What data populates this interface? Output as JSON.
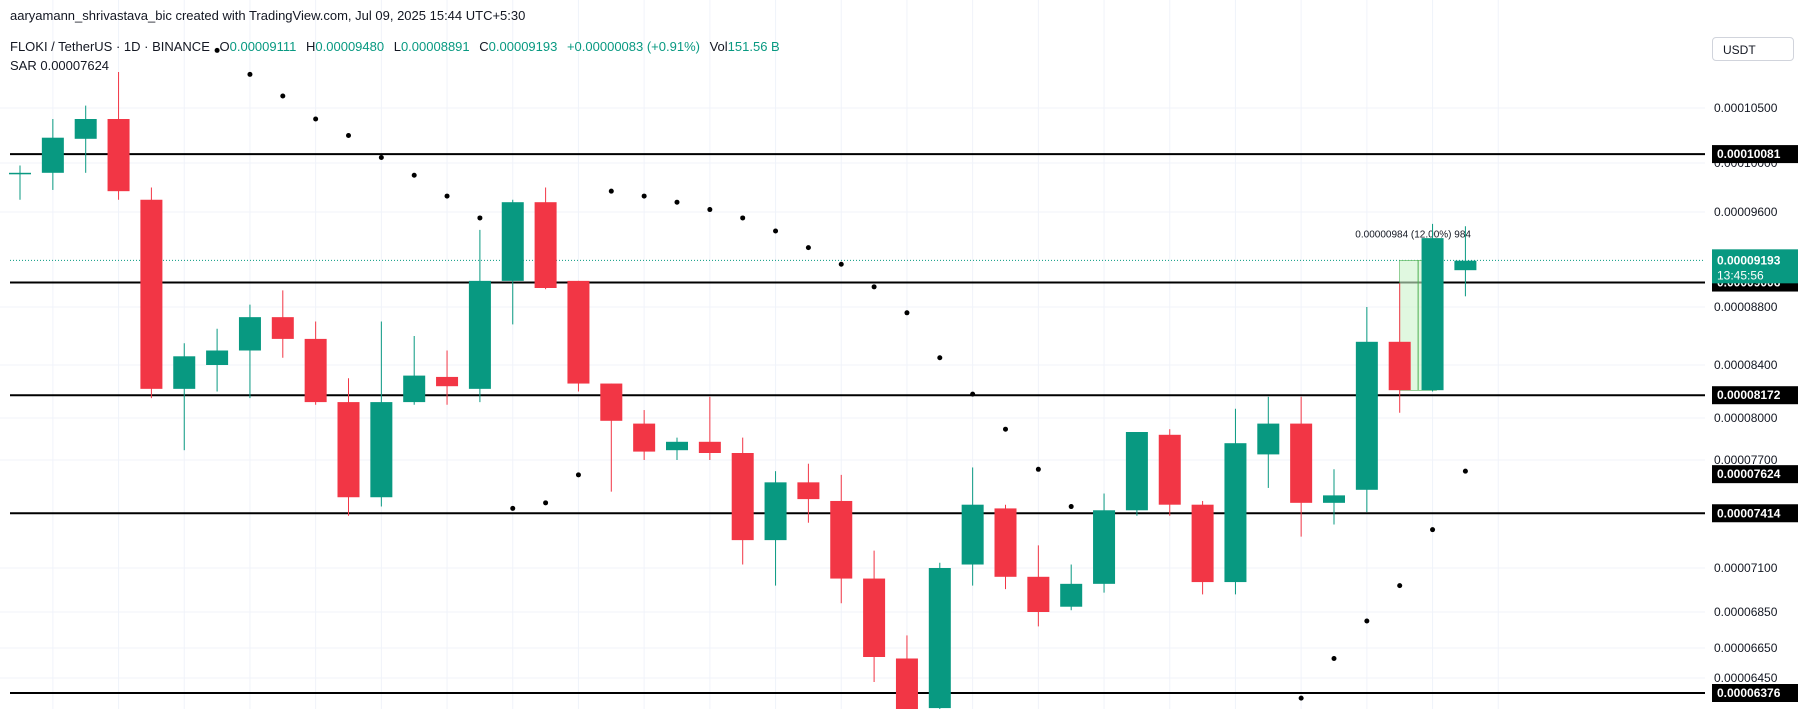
{
  "header": {
    "credit": "aaryamann_shrivastava_bic created with TradingView.com, Jul 09, 2025 15:44 UTC+5:30",
    "symbol": "FLOKI / TetherUS · 1D · BINANCE",
    "o_label": "O",
    "o_value": "0.00009111",
    "h_label": "H",
    "h_value": "0.00009480",
    "l_label": "L",
    "l_value": "0.00008891",
    "c_label": "C",
    "c_value": "0.00009193",
    "change": "+0.00000083 (+0.91%)",
    "vol_label": "Vol",
    "vol_value": "151.56 B",
    "sar_label": "SAR",
    "sar_value": "0.00007624"
  },
  "currency_button": "USDT",
  "colors": {
    "up": "#089981",
    "down": "#f23645",
    "sar_dot": "#000000",
    "grid": "#f0f3fa",
    "level_line": "#000000",
    "range_fill": "#ccf3cc",
    "range_stroke": "#4caf50"
  },
  "chart_data": {
    "type": "candlestick",
    "y_ticks": [
      "0.00010500",
      "0.00010000",
      "0.00009600",
      "0.00008800",
      "0.00008400",
      "0.00008000",
      "0.00007700",
      "0.00007100",
      "0.00006850",
      "0.00006650",
      "0.00006450"
    ],
    "levels": [
      {
        "label": "0.00010081",
        "value": 0.00010081
      },
      {
        "label": "0.00009006",
        "value": 9.006e-05
      },
      {
        "label": "0.00008172",
        "value": 8.172e-05
      },
      {
        "label": "0.00007414",
        "value": 7.414e-05
      },
      {
        "label": "0.00006376",
        "value": 6.376e-05
      }
    ],
    "sar_label": {
      "label": "0.00007624",
      "value": 7.624e-05
    },
    "last_price": {
      "label": "0.00009193",
      "countdown": "13:45:56",
      "value": 9.193e-05
    },
    "measure_label": "0.00000984 (12.00%) 984",
    "measure_range": {
      "from": 8.209e-05,
      "to": 9.193e-05,
      "start_index": 42,
      "end_index": 43
    },
    "candles": [
      [
        9.92e-05,
        9.98e-05,
        9.7e-05,
        9.92e-05
      ],
      [
        9.92e-05,
        0.000104,
        9.78e-05,
        0.0001023
      ],
      [
        0.0001022,
        0.0001052,
        9.92e-05,
        0.000104
      ],
      [
        0.000104,
        0.000108,
        9.7e-05,
        9.77e-05
      ],
      [
        9.7e-05,
        9.8e-05,
        8.15e-05,
        8.22e-05
      ],
      [
        8.22e-05,
        8.55e-05,
        7.77e-05,
        8.46e-05
      ],
      [
        8.4e-05,
        8.65e-05,
        8.2e-05,
        8.5e-05
      ],
      [
        8.5e-05,
        8.82e-05,
        8.15e-05,
        8.73e-05
      ],
      [
        8.73e-05,
        8.94e-05,
        8.45e-05,
        8.58e-05
      ],
      [
        8.58e-05,
        8.7e-05,
        8.1e-05,
        8.12e-05
      ],
      [
        8.12e-05,
        8.3e-05,
        7.4e-05,
        7.5e-05
      ],
      [
        7.5e-05,
        8.7e-05,
        7.45e-05,
        8.12e-05
      ],
      [
        8.12e-05,
        8.6e-05,
        8.1e-05,
        8.32e-05
      ],
      [
        8.31e-05,
        8.5e-05,
        8.1e-05,
        8.24e-05
      ],
      [
        8.22e-05,
        9.45e-05,
        8.12e-05,
        9.02e-05
      ],
      [
        9.02e-05,
        9.7e-05,
        8.68e-05,
        9.68e-05
      ],
      [
        9.68e-05,
        9.8e-05,
        8.95e-05,
        8.96e-05
      ],
      [
        9.02e-05,
        9.02e-05,
        8.2e-05,
        8.26e-05
      ],
      [
        8.26e-05,
        8.26e-05,
        7.53e-05,
        7.98e-05
      ],
      [
        7.96e-05,
        8.06e-05,
        7.7e-05,
        7.76e-05
      ],
      [
        7.77e-05,
        7.86e-05,
        7.7e-05,
        7.83e-05
      ],
      [
        7.83e-05,
        8.16e-05,
        7.7e-05,
        7.75e-05
      ],
      [
        7.75e-05,
        7.86e-05,
        7.12e-05,
        7.26e-05
      ],
      [
        7.26e-05,
        7.64e-05,
        7e-05,
        7.58e-05
      ],
      [
        7.58e-05,
        7.68e-05,
        7.36e-05,
        7.49e-05
      ],
      [
        7.48e-05,
        7.62e-05,
        6.9e-05,
        7.04e-05
      ],
      [
        7.04e-05,
        7.2e-05,
        6.43e-05,
        6.59e-05
      ],
      [
        6.58e-05,
        6.72e-05,
        6.1e-05,
        6.16e-05
      ],
      [
        6.21e-05,
        7.13e-05,
        6.18e-05,
        7.1e-05
      ],
      [
        7.12e-05,
        7.66e-05,
        7e-05,
        7.46e-05
      ],
      [
        7.44e-05,
        7.46e-05,
        6.98e-05,
        7.05e-05
      ],
      [
        7.05e-05,
        7.23e-05,
        6.77e-05,
        6.85e-05
      ],
      [
        6.88e-05,
        7.12e-05,
        6.86e-05,
        7.01e-05
      ],
      [
        7.01e-05,
        7.52e-05,
        6.96e-05,
        7.43e-05
      ],
      [
        7.43e-05,
        7.9e-05,
        7.4e-05,
        7.9e-05
      ],
      [
        7.88e-05,
        7.92e-05,
        7.4e-05,
        7.46e-05
      ],
      [
        7.46e-05,
        7.48e-05,
        6.95e-05,
        7.02e-05
      ],
      [
        7.02e-05,
        8.07e-05,
        6.95e-05,
        7.82e-05
      ],
      [
        7.74e-05,
        8.16e-05,
        7.55e-05,
        7.96e-05
      ],
      [
        7.96e-05,
        8.16e-05,
        7.28e-05,
        7.47e-05
      ],
      [
        7.47e-05,
        7.65e-05,
        7.35e-05,
        7.51e-05
      ],
      [
        7.54e-05,
        8.8e-05,
        7.42e-05,
        8.56e-05
      ],
      [
        8.56e-05,
        9e-05,
        8.04e-05,
        8.21e-05
      ],
      [
        8.21e-05,
        9.5e-05,
        8.2e-05,
        9.38e-05
      ],
      [
        9.11e-05,
        9.48e-05,
        8.89e-05,
        9.19e-05
      ]
    ],
    "sar": [
      [
        6,
        0.0001098
      ],
      [
        7,
        0.0001078
      ],
      [
        8,
        0.000106
      ],
      [
        9,
        0.000104
      ],
      [
        10,
        0.0001025
      ],
      [
        11,
        0.0001005
      ],
      [
        12,
        9.9e-05
      ],
      [
        13,
        9.73e-05
      ],
      [
        14,
        9.55e-05
      ],
      [
        15,
        7.44e-05
      ],
      [
        16,
        7.47e-05
      ],
      [
        17,
        7.62e-05
      ],
      [
        18,
        9.77e-05
      ],
      [
        19,
        9.73e-05
      ],
      [
        20,
        9.68e-05
      ],
      [
        21,
        9.62e-05
      ],
      [
        22,
        9.55e-05
      ],
      [
        23,
        9.44e-05
      ],
      [
        24,
        9.3e-05
      ],
      [
        25,
        9.16e-05
      ],
      [
        26,
        8.97e-05
      ],
      [
        27,
        8.76e-05
      ],
      [
        28,
        8.45e-05
      ],
      [
        29,
        8.18e-05
      ],
      [
        30,
        7.92e-05
      ],
      [
        31,
        7.65e-05
      ],
      [
        32,
        7.45e-05
      ],
      [
        38,
        6.12e-05
      ],
      [
        39,
        6.32e-05
      ],
      [
        40,
        6.58e-05
      ],
      [
        41,
        6.8e-05
      ],
      [
        42,
        7e-05
      ],
      [
        43,
        7.32e-05
      ],
      [
        44,
        7.64e-05
      ]
    ]
  }
}
